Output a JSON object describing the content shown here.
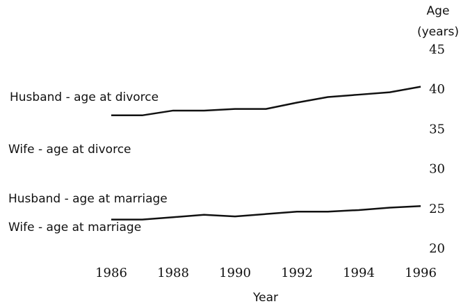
{
  "chart_data": {
    "type": "line",
    "y_label": [
      "Age",
      "(years)"
    ],
    "x_label": "Year",
    "x": [
      1986,
      1987,
      1988,
      1989,
      1990,
      1991,
      1992,
      1993,
      1994,
      1995,
      1996
    ],
    "series": [
      {
        "name": "Husband - age at divorce",
        "color": "#111111",
        "values": [
          36.8,
          36.8,
          37.4,
          37.4,
          37.6,
          37.6,
          38.4,
          39.1,
          39.4,
          39.7,
          40.4
        ]
      },
      {
        "name": "Husband - age at marriage",
        "color": "#111111",
        "values": [
          23.7,
          23.7,
          24.0,
          24.3,
          24.1,
          24.4,
          24.7,
          24.7,
          24.9,
          25.2,
          25.4
        ]
      }
    ],
    "annotations": [
      "Wife - age at divorce",
      "Wife - age at marriage"
    ],
    "xlim": [
      1986,
      1996
    ],
    "xticks": [
      1986,
      1988,
      1990,
      1992,
      1994,
      1996
    ],
    "ylim": [
      20,
      45
    ],
    "yticks": [
      20,
      25,
      30,
      35,
      40,
      45
    ],
    "y_axis_side": "right",
    "grid": false
  }
}
